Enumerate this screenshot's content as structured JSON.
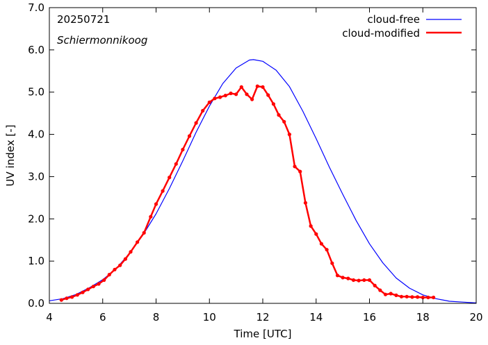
{
  "chart_data": {
    "type": "line",
    "date_label": "20250721",
    "location_label": "Schiermonnikoog",
    "xlabel": "Time  [UTC]",
    "ylabel": "UV index  [-]",
    "xlim": [
      4,
      20
    ],
    "ylim": [
      0,
      7
    ],
    "xticks": [
      4,
      6,
      8,
      10,
      12,
      14,
      16,
      18,
      20
    ],
    "xtick_labels": [
      "4",
      "6",
      "8",
      "10",
      "12",
      "14",
      "16",
      "18",
      "20"
    ],
    "yticks": [
      0,
      1,
      2,
      3,
      4,
      5,
      6,
      7
    ],
    "ytick_labels": [
      "0.0",
      "1.0",
      "2.0",
      "3.0",
      "4.0",
      "5.0",
      "6.0",
      "7.0"
    ],
    "grid": false,
    "legend_position": "top-right",
    "series": [
      {
        "name": "cloud-free",
        "color": "#0000ff",
        "markers": false,
        "x": [
          4.0,
          4.5,
          5.0,
          5.5,
          6.0,
          6.5,
          7.0,
          7.5,
          8.0,
          8.5,
          9.0,
          9.5,
          10.0,
          10.5,
          11.0,
          11.5,
          11.65,
          12.0,
          12.5,
          13.0,
          13.5,
          14.0,
          14.5,
          15.0,
          15.5,
          16.0,
          16.5,
          17.0,
          17.5,
          18.0,
          18.5,
          19.0,
          19.5,
          20.0
        ],
        "values": [
          0.06,
          0.11,
          0.21,
          0.37,
          0.56,
          0.82,
          1.18,
          1.61,
          2.12,
          2.72,
          3.37,
          4.05,
          4.67,
          5.2,
          5.57,
          5.76,
          5.77,
          5.73,
          5.52,
          5.13,
          4.55,
          3.9,
          3.22,
          2.58,
          1.96,
          1.41,
          0.96,
          0.6,
          0.36,
          0.2,
          0.11,
          0.05,
          0.03,
          0.01
        ]
      },
      {
        "name": "cloud-modified",
        "color": "#ff0000",
        "markers": true,
        "x": [
          4.45,
          4.65,
          4.85,
          5.05,
          5.25,
          5.45,
          5.65,
          5.85,
          6.05,
          6.25,
          6.45,
          6.65,
          6.85,
          7.05,
          7.3,
          7.55,
          7.8,
          8.0,
          8.25,
          8.5,
          8.75,
          9.0,
          9.25,
          9.5,
          9.75,
          10.0,
          10.2,
          10.4,
          10.6,
          10.8,
          11.0,
          11.2,
          11.4,
          11.6,
          11.8,
          12.0,
          12.2,
          12.4,
          12.6,
          12.8,
          13.0,
          13.2,
          13.4,
          13.6,
          13.8,
          14.0,
          14.2,
          14.4,
          14.6,
          14.8,
          15.0,
          15.2,
          15.4,
          15.6,
          15.8,
          16.0,
          16.2,
          16.4,
          16.6,
          16.8,
          17.0,
          17.2,
          17.4,
          17.6,
          17.8,
          18.0,
          18.2,
          18.4
        ],
        "values": [
          0.08,
          0.12,
          0.15,
          0.2,
          0.26,
          0.33,
          0.4,
          0.46,
          0.55,
          0.68,
          0.8,
          0.9,
          1.05,
          1.22,
          1.45,
          1.67,
          2.05,
          2.35,
          2.66,
          2.98,
          3.3,
          3.64,
          3.96,
          4.27,
          4.56,
          4.76,
          4.85,
          4.88,
          4.92,
          4.97,
          4.95,
          5.12,
          4.95,
          4.83,
          5.14,
          5.12,
          4.93,
          4.72,
          4.46,
          4.3,
          4.0,
          3.24,
          3.12,
          2.38,
          1.83,
          1.64,
          1.41,
          1.27,
          0.95,
          0.66,
          0.61,
          0.59,
          0.55,
          0.54,
          0.55,
          0.55,
          0.42,
          0.31,
          0.21,
          0.23,
          0.19,
          0.16,
          0.16,
          0.15,
          0.15,
          0.14,
          0.14,
          0.14
        ]
      }
    ]
  }
}
